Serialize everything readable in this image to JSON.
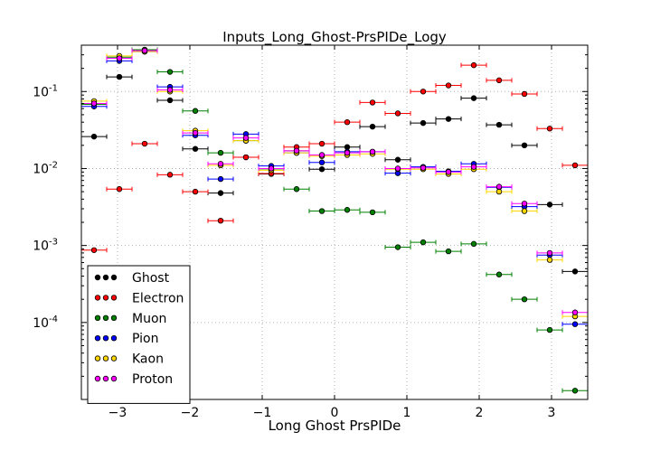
{
  "chart_data": {
    "type": "scatter",
    "title": "Inputs_Long_Ghost-PrsPIDe_Logy",
    "xlabel": "Long Ghost PrsPIDe",
    "ylabel": "",
    "xlim": [
      -3.5,
      3.5
    ],
    "ylim": [
      1e-05,
      0.4
    ],
    "yscale": "log",
    "grid": true,
    "legend_position": "bottom-left",
    "x_ticks": [
      {
        "value": -3,
        "label": "−3"
      },
      {
        "value": -2,
        "label": "−2"
      },
      {
        "value": -1,
        "label": "−1"
      },
      {
        "value": 0,
        "label": "0"
      },
      {
        "value": 1,
        "label": "1"
      },
      {
        "value": 2,
        "label": "2"
      },
      {
        "value": 3,
        "label": "3"
      }
    ],
    "y_ticks": [
      {
        "value": 0.1,
        "base": "10",
        "exp": "-1"
      },
      {
        "value": 0.01,
        "base": "10",
        "exp": "-2"
      },
      {
        "value": 0.001,
        "base": "10",
        "exp": "-3"
      },
      {
        "value": 0.0001,
        "base": "10",
        "exp": "-4"
      }
    ],
    "bin_half_width": 0.175,
    "x": [
      -3.325,
      -2.975,
      -2.625,
      -2.275,
      -1.925,
      -1.575,
      -1.225,
      -0.875,
      -0.525,
      -0.175,
      0.175,
      0.525,
      0.875,
      1.225,
      1.575,
      1.925,
      2.275,
      2.625,
      2.975,
      3.325
    ],
    "series": [
      {
        "name": "Ghost",
        "color": "#000000",
        "values": [
          0.026,
          0.155,
          0.34,
          0.077,
          0.018,
          0.0048,
          0.014,
          0.0085,
          0.017,
          0.0098,
          0.019,
          0.035,
          0.013,
          0.039,
          0.044,
          0.082,
          0.037,
          0.02,
          0.0034,
          0.00046
        ]
      },
      {
        "name": "Electron",
        "color": "#ff0000",
        "values": [
          0.00087,
          0.0054,
          0.021,
          0.0083,
          0.005,
          0.0021,
          0.014,
          0.0086,
          0.019,
          0.021,
          0.04,
          0.072,
          0.052,
          0.1,
          0.12,
          0.22,
          0.14,
          0.093,
          0.033,
          0.011
        ]
      },
      {
        "name": "Muon",
        "color": "#008000",
        "values": [
          0.068,
          0.28,
          0.35,
          0.18,
          0.056,
          0.016,
          0.023,
          0.0096,
          0.0054,
          0.0028,
          0.0029,
          0.0027,
          0.00095,
          0.0011,
          0.00084,
          0.00105,
          0.00042,
          0.0002,
          8e-05,
          1.3e-05
        ]
      },
      {
        "name": "Pion",
        "color": "#0000ff",
        "values": [
          0.064,
          0.25,
          0.33,
          0.115,
          0.027,
          0.0073,
          0.028,
          0.0108,
          0.016,
          0.012,
          0.0165,
          0.0165,
          0.0087,
          0.0105,
          0.0092,
          0.0115,
          0.0057,
          0.0032,
          0.00075,
          9.5e-05
        ]
      },
      {
        "name": "Kaon",
        "color": "#ffd700",
        "values": [
          0.075,
          0.29,
          0.33,
          0.1,
          0.031,
          0.011,
          0.023,
          0.0095,
          0.016,
          0.0145,
          0.015,
          0.0155,
          0.0098,
          0.0098,
          0.0085,
          0.0098,
          0.005,
          0.0028,
          0.00065,
          0.00012
        ]
      },
      {
        "name": "Proton",
        "color": "#ff00ff",
        "values": [
          0.07,
          0.27,
          0.34,
          0.105,
          0.029,
          0.0115,
          0.025,
          0.01,
          0.017,
          0.015,
          0.016,
          0.0165,
          0.01,
          0.0102,
          0.009,
          0.0105,
          0.0058,
          0.0035,
          0.0008,
          0.000135
        ]
      }
    ]
  }
}
